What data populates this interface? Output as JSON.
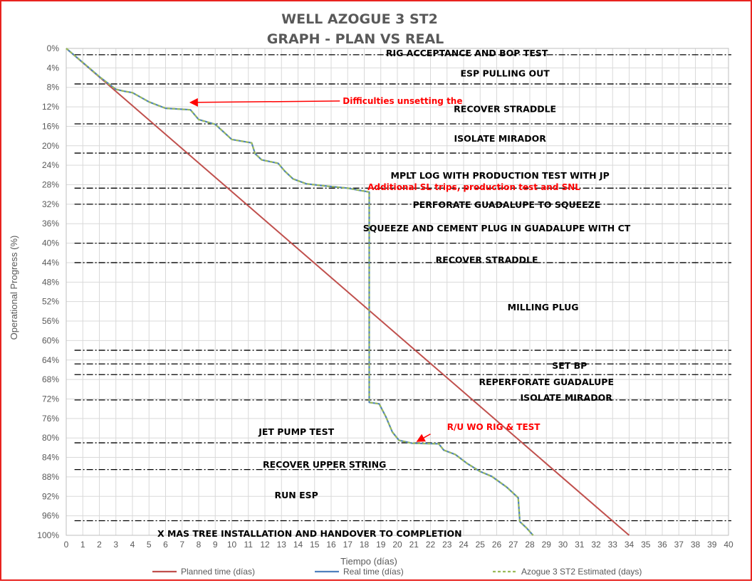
{
  "chart_data": {
    "type": "line",
    "title": [
      "WELL AZOGUE 3 ST2",
      "GRAPH  - PLAN VS REAL"
    ],
    "xlabel": "Tiempo (días)",
    "ylabel": "Operational Progress (%)",
    "xlim": [
      0,
      40
    ],
    "ylim": [
      0,
      100
    ],
    "y_inverted": true,
    "x_ticks": [
      "0",
      "1",
      "2",
      "3",
      "4",
      "5",
      "6",
      "7",
      "8",
      "9",
      "10",
      "11",
      "12",
      "13",
      "14",
      "15",
      "16",
      "17",
      "18",
      "19",
      "20",
      "21",
      "22",
      "23",
      "24",
      "25",
      "26",
      "27",
      "28",
      "29",
      "30",
      "31",
      "32",
      "33",
      "34",
      "35",
      "36",
      "37",
      "38",
      "39",
      "40"
    ],
    "y_ticks": [
      "0%",
      "4%",
      "8%",
      "12%",
      "16%",
      "20%",
      "24%",
      "28%",
      "32%",
      "36%",
      "40%",
      "44%",
      "48%",
      "52%",
      "56%",
      "60%",
      "64%",
      "68%",
      "72%",
      "76%",
      "80%",
      "84%",
      "88%",
      "92%",
      "96%",
      "100%"
    ],
    "y_tick_values": [
      0,
      4,
      8,
      12,
      16,
      20,
      24,
      28,
      32,
      36,
      40,
      44,
      48,
      52,
      56,
      60,
      64,
      68,
      72,
      76,
      80,
      84,
      88,
      92,
      96,
      100
    ],
    "grid": true,
    "legend_position": "bottom",
    "series": [
      {
        "name": "Planned time (días)",
        "color": "#c0504d",
        "style": "solid",
        "points": [
          [
            0,
            0
          ],
          [
            34,
            100
          ]
        ]
      },
      {
        "name": "Real time (días)",
        "color": "#4f81bd",
        "style": "solid",
        "points": [
          [
            0,
            0
          ],
          [
            1,
            2.9
          ],
          [
            2,
            5.8
          ],
          [
            3,
            8.4
          ],
          [
            3.5,
            8.8
          ],
          [
            4,
            9.1
          ],
          [
            5,
            11.0
          ],
          [
            6,
            12.3
          ],
          [
            7.5,
            12.6
          ],
          [
            8,
            14.6
          ],
          [
            9,
            15.6
          ],
          [
            10,
            18.7
          ],
          [
            11.2,
            19.4
          ],
          [
            11.4,
            21.6
          ],
          [
            11.8,
            22.9
          ],
          [
            12.8,
            23.6
          ],
          [
            13.2,
            25.2
          ],
          [
            13.7,
            26.8
          ],
          [
            14.5,
            27.8
          ],
          [
            15.5,
            28.2
          ],
          [
            17,
            28.7
          ],
          [
            18.3,
            29.5
          ],
          [
            18.3,
            72.7
          ],
          [
            18.9,
            73.0
          ],
          [
            19.3,
            75.6
          ],
          [
            19.7,
            78.8
          ],
          [
            20.1,
            80.5
          ],
          [
            20.9,
            81.1
          ],
          [
            22.5,
            81.2
          ],
          [
            22.8,
            82.5
          ],
          [
            23.5,
            83.4
          ],
          [
            24.2,
            85.2
          ],
          [
            25,
            86.9
          ],
          [
            25.7,
            87.9
          ],
          [
            26.6,
            90.1
          ],
          [
            27.3,
            92.3
          ],
          [
            27.4,
            97.2
          ],
          [
            27.8,
            98.5
          ],
          [
            28.2,
            100
          ]
        ]
      },
      {
        "name": "Azogue 3 ST2 Estimated (days)",
        "color": "#9bbb59",
        "style": "dashed",
        "points": [
          [
            0,
            0
          ],
          [
            1,
            2.9
          ],
          [
            2,
            5.8
          ],
          [
            3,
            8.4
          ],
          [
            3.5,
            8.8
          ],
          [
            4,
            9.1
          ],
          [
            5,
            11.0
          ],
          [
            6,
            12.3
          ],
          [
            7.5,
            12.6
          ],
          [
            8,
            14.6
          ],
          [
            9,
            15.6
          ],
          [
            10,
            18.7
          ],
          [
            11.2,
            19.4
          ],
          [
            11.4,
            21.6
          ],
          [
            11.8,
            22.9
          ],
          [
            12.8,
            23.6
          ],
          [
            13.2,
            25.2
          ],
          [
            13.7,
            26.8
          ],
          [
            14.5,
            27.8
          ],
          [
            15.5,
            28.2
          ],
          [
            17,
            28.7
          ],
          [
            18.3,
            29.5
          ],
          [
            18.3,
            72.7
          ],
          [
            18.9,
            73.0
          ],
          [
            19.3,
            75.6
          ],
          [
            19.7,
            78.8
          ],
          [
            20.1,
            80.5
          ],
          [
            20.9,
            81.1
          ],
          [
            22.5,
            81.2
          ],
          [
            22.8,
            82.5
          ],
          [
            23.5,
            83.4
          ],
          [
            24.2,
            85.2
          ],
          [
            25,
            86.9
          ],
          [
            25.7,
            87.9
          ],
          [
            26.6,
            90.1
          ],
          [
            27.3,
            92.3
          ],
          [
            27.4,
            97.2
          ],
          [
            27.8,
            98.5
          ],
          [
            28.2,
            100
          ]
        ]
      }
    ],
    "phase_lines": [
      1.3,
      7.3,
      15.5,
      21.5,
      28.7,
      32.0,
      40.0,
      44.0,
      62.0,
      64.8,
      67.0,
      72.2,
      81.0,
      86.5,
      97.0
    ],
    "phases": [
      {
        "label": "RIG ACCEPTANCE AND BOP TEST",
        "x": 24.2,
        "y": 1.0
      },
      {
        "label": "ESP PULLING OUT",
        "x": 26.5,
        "y": 5.2
      },
      {
        "label": "RECOVER STRADDLE",
        "x": 26.5,
        "y": 12.5
      },
      {
        "label": "ISOLATE MIRADOR",
        "x": 26.2,
        "y": 18.6
      },
      {
        "label": "MPLT LOG WITH PRODUCTION TEST WITH JP",
        "x": 26.2,
        "y": 26.2
      },
      {
        "label": "PERFORATE GUADALUPE TO SQUEEZE",
        "x": 26.6,
        "y": 32.2
      },
      {
        "label": "SQUEEZE AND CEMENT PLUG IN GUADALUPE WITH CT",
        "x": 26.0,
        "y": 37.0
      },
      {
        "label": "RECOVER STRADDLE",
        "x": 25.4,
        "y": 43.5
      },
      {
        "label": "MILLING PLUG",
        "x": 28.8,
        "y": 53.2
      },
      {
        "label": "SET BP",
        "x": 30.4,
        "y": 65.2
      },
      {
        "label": "REPERFORATE GUADALUPE",
        "x": 29.0,
        "y": 68.6
      },
      {
        "label": "ISOLATE MIRADOR",
        "x": 30.2,
        "y": 71.8
      },
      {
        "label": "JET PUMP TEST",
        "x": 13.9,
        "y": 78.8
      },
      {
        "label": "RECOVER UPPER STRING",
        "x": 15.6,
        "y": 85.5
      },
      {
        "label": "RUN ESP",
        "x": 13.9,
        "y": 91.8
      },
      {
        "label": "X MAS TREE INSTALLATION AND HANDOVER TO COMPLETION",
        "x": 14.7,
        "y": 99.7
      }
    ],
    "annotations": [
      {
        "label": "Difficulties unsetting the",
        "text_x": 16.7,
        "text_y": 10.8,
        "arrow_to": [
          7.5,
          11.1
        ]
      },
      {
        "label": "Additional SL trips, production test and SNL",
        "text_x": 18.2,
        "text_y": 28.5
      },
      {
        "label": "R/U WO RIG & TEST",
        "text_x": 23.0,
        "text_y": 77.8,
        "arrow_from": [
          22.0,
          79.2
        ],
        "arrow_to": [
          21.2,
          80.7
        ]
      }
    ]
  }
}
